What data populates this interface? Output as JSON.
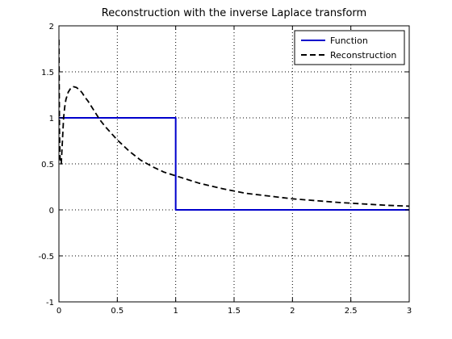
{
  "chart_data": {
    "type": "line",
    "title": "Reconstruction with the inverse Laplace transform",
    "xlabel": "",
    "ylabel": "",
    "xlim": [
      0,
      3
    ],
    "ylim": [
      -1,
      2
    ],
    "x_ticks": [
      0,
      0.5,
      1,
      1.5,
      2,
      2.5,
      3
    ],
    "x_tick_labels": [
      "0",
      "0.5",
      "1",
      "1.5",
      "2",
      "2.5",
      "3"
    ],
    "y_ticks": [
      -1,
      -0.5,
      0,
      0.5,
      1,
      1.5,
      2
    ],
    "y_tick_labels": [
      "-1",
      "-0.5",
      "0",
      "0.5",
      "1",
      "1.5",
      "2"
    ],
    "grid": true,
    "grid_style": "dotted",
    "legend_position": "top-right",
    "series": [
      {
        "name": "Function",
        "color": "#0000cc",
        "style": "solid",
        "x": [
          0,
          1,
          1,
          3
        ],
        "y": [
          1,
          1,
          0,
          0
        ]
      },
      {
        "name": "Reconstruction",
        "color": "#000000",
        "style": "dashed",
        "x": [
          0.0,
          0.005,
          0.01,
          0.02,
          0.03,
          0.04,
          0.05,
          0.06,
          0.08,
          0.1,
          0.12,
          0.15,
          0.18,
          0.2,
          0.22,
          0.25,
          0.3,
          0.35,
          0.4,
          0.5,
          0.6,
          0.7,
          0.8,
          0.9,
          1.0,
          1.2,
          1.4,
          1.6,
          1.8,
          2.0,
          2.2,
          2.4,
          2.6,
          2.8,
          3.0
        ],
        "y": [
          1.85,
          0.85,
          0.55,
          0.5,
          0.75,
          1.0,
          1.12,
          1.2,
          1.28,
          1.32,
          1.34,
          1.33,
          1.3,
          1.27,
          1.23,
          1.18,
          1.08,
          0.98,
          0.9,
          0.76,
          0.64,
          0.54,
          0.47,
          0.41,
          0.37,
          0.29,
          0.23,
          0.18,
          0.15,
          0.12,
          0.1,
          0.08,
          0.065,
          0.05,
          0.04
        ]
      }
    ]
  }
}
